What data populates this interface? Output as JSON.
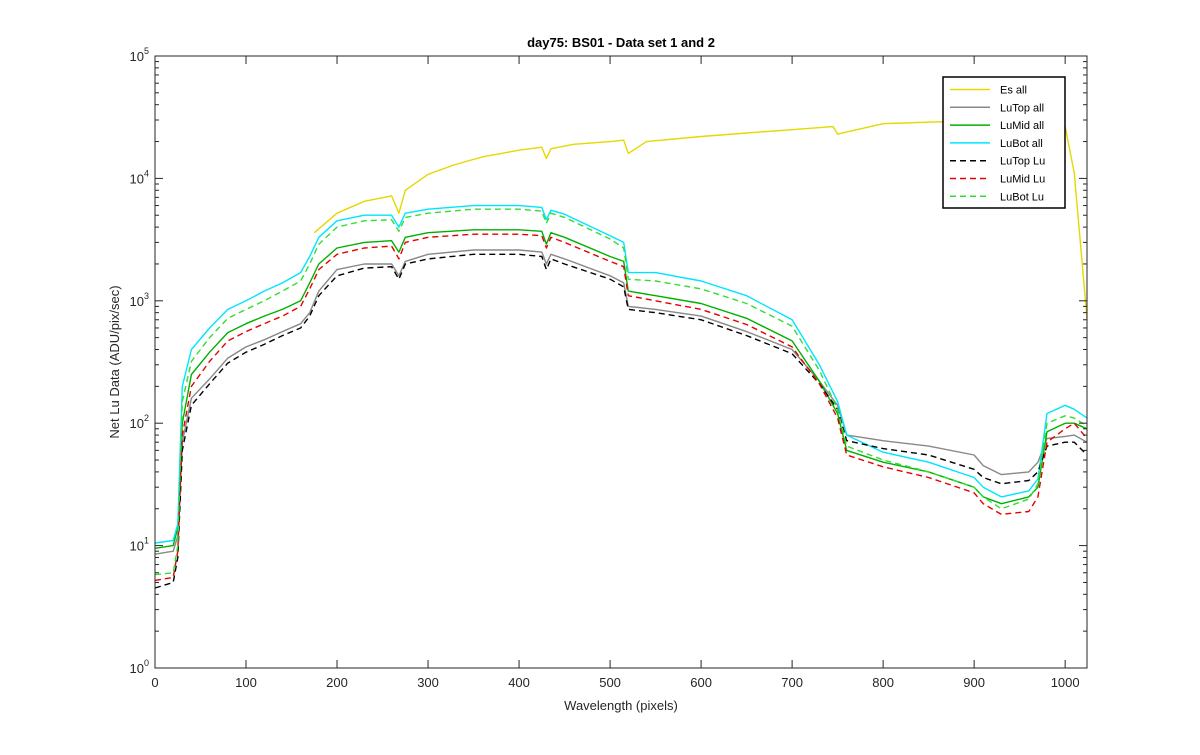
{
  "chart_data": {
    "type": "line",
    "title": "day75: BS01 - Data set 1 and 2",
    "xlabel": "Wavelength (pixels)",
    "ylabel": "Net Lu Data (ADU/pix/sec)",
    "xlim": [
      0,
      1024
    ],
    "ylim": [
      1,
      100000
    ],
    "yscale": "log",
    "xticks": [
      0,
      100,
      200,
      300,
      400,
      500,
      600,
      700,
      800,
      900,
      1000
    ],
    "xtick_labels": [
      "0",
      "100",
      "200",
      "300",
      "400",
      "500",
      "600",
      "700",
      "800",
      "900",
      "1000"
    ],
    "yticks": [
      1,
      10,
      100,
      1000,
      10000,
      100000
    ],
    "ytick_labels": [
      {
        "base": "10",
        "exp": "0"
      },
      {
        "base": "10",
        "exp": "1"
      },
      {
        "base": "10",
        "exp": "2"
      },
      {
        "base": "10",
        "exp": "3"
      },
      {
        "base": "10",
        "exp": "4"
      },
      {
        "base": "10",
        "exp": "5"
      }
    ],
    "grid": false,
    "legend_position": "top-right",
    "series": [
      {
        "name": "Es  all",
        "color": "#e6d800",
        "style": "solid",
        "x": [
          175,
          200,
          230,
          260,
          268,
          275,
          300,
          330,
          360,
          400,
          425,
          430,
          435,
          460,
          500,
          515,
          520,
          540,
          600,
          650,
          700,
          745,
          750,
          800,
          860,
          900,
          950,
          1000,
          1010,
          1024
        ],
        "y": [
          3600,
          5200,
          6500,
          7200,
          5200,
          8000,
          10800,
          13000,
          15000,
          17000,
          18000,
          14500,
          17500,
          19000,
          20000,
          20500,
          16000,
          20000,
          22000,
          23500,
          25000,
          26500,
          23000,
          28000,
          29000,
          28500,
          27500,
          26500,
          11000,
          720
        ]
      },
      {
        "name": "LuTop  all",
        "color": "#888888",
        "style": "solid",
        "x": [
          0,
          20,
          25,
          30,
          40,
          60,
          80,
          100,
          120,
          140,
          160,
          170,
          180,
          200,
          230,
          260,
          268,
          275,
          300,
          350,
          400,
          425,
          430,
          435,
          450,
          500,
          515,
          520,
          550,
          600,
          650,
          700,
          730,
          750,
          760,
          800,
          850,
          900,
          910,
          930,
          960,
          970,
          980,
          1000,
          1010,
          1024
        ],
        "y": [
          8.5,
          9,
          12,
          70,
          160,
          230,
          340,
          420,
          480,
          560,
          650,
          800,
          1200,
          1800,
          2000,
          2000,
          1600,
          2100,
          2400,
          2600,
          2600,
          2500,
          2000,
          2400,
          2200,
          1600,
          1400,
          900,
          850,
          750,
          560,
          400,
          220,
          140,
          80,
          72,
          65,
          55,
          45,
          38,
          40,
          48,
          75,
          78,
          80,
          70
        ]
      },
      {
        "name": "LuMid  all",
        "color": "#00b000",
        "style": "solid",
        "x": [
          0,
          20,
          25,
          30,
          40,
          60,
          80,
          100,
          120,
          140,
          160,
          170,
          180,
          200,
          230,
          260,
          268,
          275,
          300,
          350,
          400,
          425,
          430,
          435,
          450,
          500,
          515,
          520,
          550,
          600,
          650,
          700,
          730,
          750,
          760,
          800,
          850,
          900,
          910,
          930,
          960,
          970,
          980,
          1000,
          1010,
          1024
        ],
        "y": [
          9.5,
          10,
          14,
          100,
          250,
          380,
          550,
          650,
          750,
          850,
          1000,
          1400,
          2000,
          2700,
          3000,
          3100,
          2500,
          3300,
          3600,
          3800,
          3800,
          3700,
          2900,
          3600,
          3300,
          2300,
          2100,
          1200,
          1100,
          950,
          720,
          470,
          220,
          120,
          60,
          48,
          40,
          30,
          25,
          22,
          25,
          30,
          85,
          100,
          100,
          90
        ]
      },
      {
        "name": "LuBot  all",
        "color": "#00e5ff",
        "style": "solid",
        "x": [
          0,
          20,
          25,
          30,
          40,
          60,
          80,
          100,
          120,
          140,
          160,
          170,
          180,
          200,
          230,
          260,
          268,
          275,
          300,
          350,
          400,
          425,
          430,
          435,
          450,
          500,
          515,
          520,
          550,
          600,
          650,
          700,
          730,
          750,
          760,
          800,
          850,
          900,
          910,
          930,
          960,
          970,
          980,
          1000,
          1010,
          1024
        ],
        "y": [
          10.5,
          11,
          15,
          200,
          400,
          600,
          850,
          1000,
          1200,
          1400,
          1700,
          2300,
          3300,
          4500,
          5000,
          5000,
          4000,
          5200,
          5600,
          6000,
          6000,
          5800,
          4600,
          5500,
          5100,
          3400,
          3000,
          1700,
          1700,
          1450,
          1100,
          700,
          300,
          150,
          80,
          58,
          48,
          36,
          30,
          25,
          28,
          35,
          120,
          140,
          130,
          110
        ]
      },
      {
        "name": "LuTop  Lu",
        "color": "#000000",
        "style": "dashed",
        "x": [
          0,
          20,
          25,
          30,
          40,
          60,
          80,
          100,
          120,
          140,
          160,
          170,
          180,
          200,
          230,
          260,
          268,
          275,
          300,
          350,
          400,
          425,
          430,
          435,
          450,
          500,
          515,
          520,
          550,
          600,
          650,
          700,
          730,
          750,
          760,
          800,
          850,
          900,
          910,
          930,
          960,
          970,
          980,
          1000,
          1010,
          1024
        ],
        "y": [
          4.5,
          5,
          8,
          60,
          140,
          210,
          310,
          380,
          440,
          520,
          600,
          750,
          1100,
          1600,
          1850,
          1900,
          1500,
          2000,
          2200,
          2400,
          2400,
          2300,
          1800,
          2200,
          2000,
          1500,
          1300,
          850,
          800,
          700,
          520,
          370,
          210,
          130,
          72,
          62,
          55,
          42,
          36,
          32,
          34,
          40,
          65,
          70,
          70,
          55
        ]
      },
      {
        "name": "LuMid  Lu",
        "color": "#e60000",
        "style": "dashed",
        "x": [
          0,
          20,
          25,
          30,
          40,
          60,
          80,
          100,
          120,
          140,
          160,
          170,
          180,
          200,
          230,
          260,
          268,
          275,
          300,
          350,
          400,
          425,
          430,
          435,
          450,
          500,
          515,
          520,
          550,
          600,
          650,
          700,
          730,
          750,
          760,
          800,
          850,
          900,
          910,
          930,
          960,
          970,
          980,
          1000,
          1010,
          1024
        ],
        "y": [
          5.2,
          5.5,
          9,
          80,
          200,
          320,
          470,
          560,
          650,
          750,
          900,
          1250,
          1800,
          2400,
          2700,
          2800,
          2200,
          3000,
          3300,
          3500,
          3500,
          3400,
          2700,
          3300,
          3000,
          2100,
          1900,
          1100,
          1000,
          850,
          640,
          420,
          210,
          110,
          55,
          44,
          36,
          27,
          22,
          18,
          19,
          25,
          70,
          90,
          100,
          75
        ]
      },
      {
        "name": "LuBot  Lu",
        "color": "#33dd33",
        "style": "dashed",
        "x": [
          0,
          20,
          25,
          30,
          40,
          60,
          80,
          100,
          120,
          140,
          160,
          170,
          180,
          200,
          230,
          260,
          268,
          275,
          300,
          350,
          400,
          425,
          430,
          435,
          450,
          500,
          515,
          520,
          550,
          600,
          650,
          700,
          730,
          750,
          760,
          800,
          850,
          900,
          910,
          930,
          960,
          970,
          980,
          1000,
          1010,
          1024
        ],
        "y": [
          5.8,
          6,
          10,
          150,
          320,
          500,
          720,
          850,
          1000,
          1200,
          1450,
          2000,
          2900,
          4000,
          4500,
          4600,
          3700,
          4800,
          5200,
          5600,
          5600,
          5400,
          4300,
          5200,
          4800,
          3200,
          2700,
          1500,
          1450,
          1250,
          950,
          620,
          270,
          130,
          65,
          50,
          40,
          30,
          25,
          20,
          24,
          32,
          100,
          115,
          110,
          95
        ]
      }
    ]
  }
}
